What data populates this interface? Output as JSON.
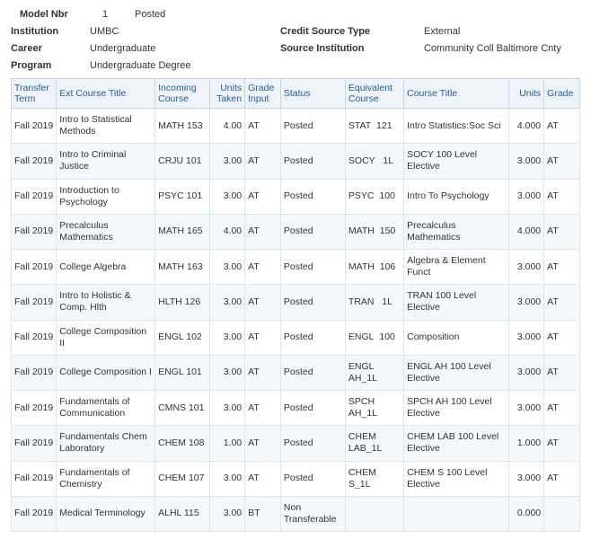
{
  "header": {
    "model_nbr_label": "Model Nbr",
    "model_nbr_value": "1",
    "model_nbr_status": "Posted",
    "institution_label": "Institution",
    "institution_value": "UMBC",
    "credit_source_label": "Credit Source Type",
    "credit_source_value": "External",
    "career_label": "Career",
    "career_value": "Undergraduate",
    "source_inst_label": "Source Institution",
    "source_inst_value": "Community Coll Baltimore Cnty",
    "program_label": "Program",
    "program_value": "Undergraduate Degree"
  },
  "columns": {
    "transfer_term": "Transfer Term",
    "ext_course_title": "Ext Course Title",
    "incoming_course": "Incoming Course",
    "units_taken": "Units Taken",
    "grade_input": "Grade Input",
    "status": "Status",
    "equivalent_course": "Equivalent Course",
    "course_title": "Course Title",
    "units": "Units",
    "grade": "Grade"
  },
  "rows": [
    {
      "term": "Fall 2019",
      "ext": "Intro to Statistical Methods",
      "incoming": "MATH 153",
      "units_taken": "4.00",
      "grade_input": "AT",
      "status": "Posted",
      "equiv": "STAT  121",
      "title": "Intro Statistics:Soc Sci",
      "units": "4.000",
      "grade": "AT"
    },
    {
      "term": "Fall 2019",
      "ext": "Intro to Criminal Justice",
      "incoming": "CRJU 101",
      "units_taken": "3.00",
      "grade_input": "AT",
      "status": "Posted",
      "equiv": "SOCY   1L",
      "title": "SOCY 100 Level Elective",
      "units": "3.000",
      "grade": "AT"
    },
    {
      "term": "Fall 2019",
      "ext": "Introduction to Psychology",
      "incoming": "PSYC 101",
      "units_taken": "3.00",
      "grade_input": "AT",
      "status": "Posted",
      "equiv": "PSYC  100",
      "title": "Intro To Psychology",
      "units": "3.000",
      "grade": "AT"
    },
    {
      "term": "Fall 2019",
      "ext": "Precalculus Mathematics",
      "incoming": "MATH 165",
      "units_taken": "4.00",
      "grade_input": "AT",
      "status": "Posted",
      "equiv": "MATH  150",
      "title": "Precalculus Mathematics",
      "units": "4.000",
      "grade": "AT"
    },
    {
      "term": "Fall 2019",
      "ext": "College Algebra",
      "incoming": "MATH 163",
      "units_taken": "3.00",
      "grade_input": "AT",
      "status": "Posted",
      "equiv": "MATH  106",
      "title": "Algebra & Element Funct",
      "units": "3.000",
      "grade": "AT"
    },
    {
      "term": "Fall 2019",
      "ext": "Intro to Holistic & Comp. Hlth",
      "incoming": "HLTH 126",
      "units_taken": "3.00",
      "grade_input": "AT",
      "status": "Posted",
      "equiv": "TRAN   1L",
      "title": "TRAN 100 Level Elective",
      "units": "3.000",
      "grade": "AT"
    },
    {
      "term": "Fall 2019",
      "ext": "College Composition II",
      "incoming": "ENGL 102",
      "units_taken": "3.00",
      "grade_input": "AT",
      "status": "Posted",
      "equiv": "ENGL  100",
      "title": "Composition",
      "units": "3.000",
      "grade": "AT"
    },
    {
      "term": "Fall 2019",
      "ext": "College Composition I",
      "incoming": "ENGL 101",
      "units_taken": "3.00",
      "grade_input": "AT",
      "status": "Posted",
      "equiv": "ENGL AH_1L",
      "title": "ENGL AH 100 Level Elective",
      "units": "3.000",
      "grade": "AT"
    },
    {
      "term": "Fall 2019",
      "ext": "Fundamentals of Communication",
      "incoming": "CMNS 101",
      "units_taken": "3.00",
      "grade_input": "AT",
      "status": "Posted",
      "equiv": "SPCH AH_1L",
      "title": "SPCH AH 100 Level Elective",
      "units": "3.000",
      "grade": "AT"
    },
    {
      "term": "Fall 2019",
      "ext": "Fundamentals Chem Laboratory",
      "incoming": "CHEM 108",
      "units_taken": "1.00",
      "grade_input": "AT",
      "status": "Posted",
      "equiv": "CHEM LAB_1L",
      "title": "CHEM LAB 100 Level Elective",
      "units": "1.000",
      "grade": "AT"
    },
    {
      "term": "Fall 2019",
      "ext": "Fundamentals of Chemistry",
      "incoming": "CHEM 107",
      "units_taken": "3.00",
      "grade_input": "AT",
      "status": "Posted",
      "equiv": "CHEM S_1L",
      "title": "CHEM S 100 Level Elective",
      "units": "3.000",
      "grade": "AT"
    },
    {
      "term": "Fall 2019",
      "ext": "Medical Terminology",
      "incoming": "ALHL 115",
      "units_taken": "3.00",
      "grade_input": "BT",
      "status": "Non Transferable",
      "equiv": "",
      "title": "",
      "units": "0.000",
      "grade": ""
    }
  ]
}
